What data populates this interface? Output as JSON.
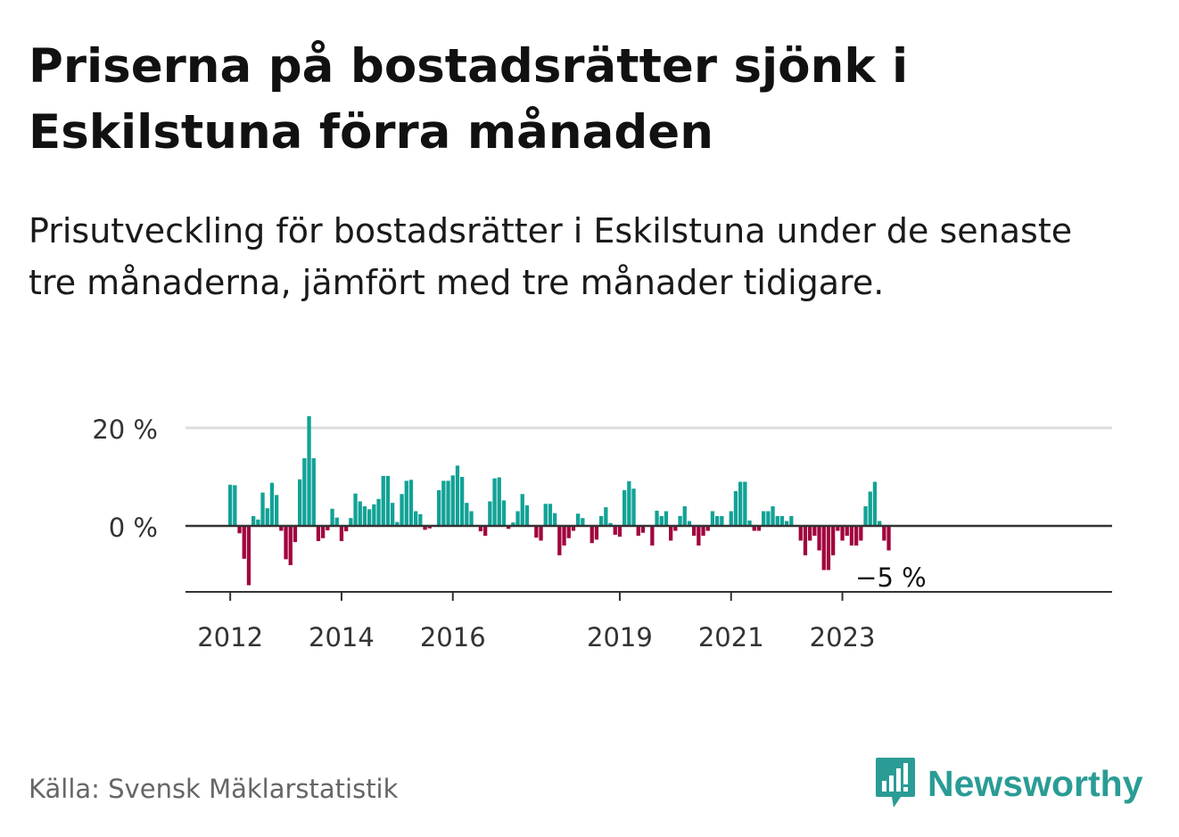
{
  "header": {
    "title": "Priserna på bostadsrätter sjönk i Eskilstuna förra månaden",
    "subtitle": "Prisutveckling för bostadsrätter i Eskilstuna under de senaste tre månaderna, jämfört med tre månader tidigare."
  },
  "footer": {
    "source": "Källa: Svensk Mäklarstatistik",
    "brand": "Newsworthy"
  },
  "colors": {
    "positive": "#12a296",
    "negative": "#a1043f",
    "brand": "#2a9c95",
    "grid": "#dddddd",
    "axis": "#333333"
  },
  "chart_data": {
    "type": "bar",
    "title": "Priserna på bostadsrätter sjönk i Eskilstuna förra månaden",
    "subtitle": "Prisutveckling för bostadsrätter i Eskilstuna under de senaste tre månaderna, jämfört med tre månader tidigare.",
    "unit": "%",
    "x_start": "2012-01",
    "ylim": [
      -14,
      22
    ],
    "yticks": [
      {
        "value": 0,
        "label": "0 %"
      },
      {
        "value": 20,
        "label": "20 %"
      }
    ],
    "xticks": [
      {
        "label": "2012",
        "year": 2012
      },
      {
        "label": "2014",
        "year": 2014
      },
      {
        "label": "2016",
        "year": 2016
      },
      {
        "label": "2019",
        "year": 2019
      },
      {
        "label": "2021",
        "year": 2021
      },
      {
        "label": "2023",
        "year": 2023
      }
    ],
    "last_value_label": "−5 %",
    "grid": true,
    "values": [
      8.4,
      8.3,
      -1.5,
      -6.7,
      -12.1,
      2.0,
      1.3,
      6.8,
      3.6,
      8.8,
      6.3,
      -1.0,
      -6.8,
      -8.0,
      -3.3,
      9.5,
      13.8,
      22.4,
      13.8,
      -3.1,
      -2.5,
      -0.9,
      3.5,
      1.7,
      -3.1,
      -1.1,
      1.6,
      6.6,
      5.0,
      4.0,
      3.4,
      4.4,
      5.5,
      10.2,
      10.2,
      4.7,
      0.8,
      6.5,
      9.2,
      9.4,
      3.0,
      2.4,
      -0.8,
      -0.5,
      0,
      7.3,
      9.2,
      9.2,
      10.3,
      12.3,
      10.0,
      4.7,
      3.0,
      0,
      -1.1,
      -2.0,
      5.0,
      9.7,
      9.9,
      5.2,
      -0.6,
      0.7,
      3.0,
      6.5,
      4.2,
      0,
      -2.4,
      -3.0,
      4.5,
      4.5,
      2.6,
      -6.0,
      -4.0,
      -2.5,
      -1.0,
      2.5,
      1.6,
      0,
      -3.5,
      -2.8,
      2.0,
      3.8,
      0.6,
      -1.8,
      -2.2,
      7.3,
      9.1,
      7.6,
      -2.0,
      -1.4,
      0,
      -4.0,
      3.1,
      2.0,
      3.0,
      -3.0,
      -1.0,
      2.0,
      4.0,
      1.0,
      -2.0,
      -4.0,
      -2.0,
      -1.0,
      3.0,
      2.0,
      2.0,
      0,
      3.0,
      7.1,
      9.0,
      9.0,
      1.1,
      -1.0,
      -1.0,
      3.0,
      3.0,
      4.0,
      2.0,
      2.0,
      1.0,
      2.0,
      0,
      -3.0,
      -6.0,
      -3.0,
      -2.0,
      -5.0,
      -9.0,
      -9.0,
      -6.0,
      -1.0,
      -3.0,
      -2.0,
      -4.0,
      -4.0,
      -3.0,
      4.0,
      7.0,
      9.0,
      1.0,
      -3.0,
      -5.0
    ]
  }
}
